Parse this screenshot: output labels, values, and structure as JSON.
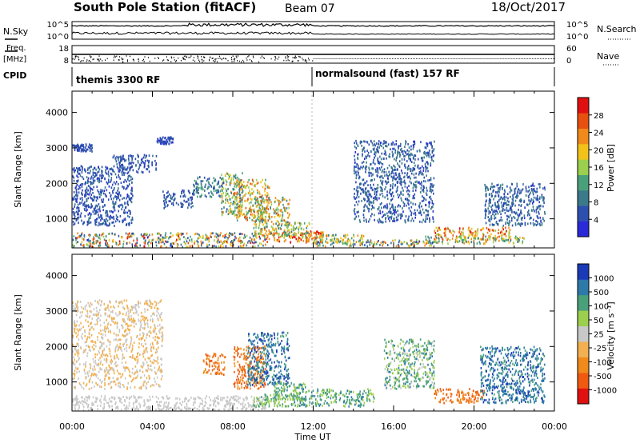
{
  "header": {
    "title": "South Pole Station (fitACF)",
    "beam": "Beam 07",
    "date": "18/Oct/2017"
  },
  "params": {
    "nsky_label": "N.Sky",
    "nsearch_label": "N.Search",
    "freq_label": "Freq.",
    "freq_unit": "[MHz]",
    "nave_label": "Nave",
    "cpid_label": "CPID",
    "nsky_ticks": [
      "10^5",
      "10^0"
    ],
    "nsearch_ticks": [
      "10^5",
      "10^0"
    ],
    "freq_ticks": [
      "18",
      "8"
    ],
    "nave_ticks": [
      "60",
      "0"
    ]
  },
  "cpid": {
    "modes": [
      {
        "label": "themis 3300 RF",
        "start_hour": 0
      },
      {
        "label": "normalsound (fast) 157 RF",
        "start_hour": 12
      }
    ]
  },
  "colors": {
    "power_scale": [
      "#2a2ad8",
      "#2d4fb0",
      "#3a7a8a",
      "#4aa07a",
      "#9ccf4e",
      "#f2c21a",
      "#f08a1a",
      "#e85010",
      "#e01010"
    ],
    "velocity_scale": [
      "#e01010",
      "#f05a10",
      "#f08a1a",
      "#f2b050",
      "#c8c8c8",
      "#9ccf4e",
      "#4aa07a",
      "#2d7aa8",
      "#1a3ab8"
    ]
  },
  "chart_data": [
    {
      "type": "heatmap",
      "name": "power",
      "ylabel": "Slant Range [km]",
      "xlabel": "",
      "ylim": [
        180,
        4600
      ],
      "yticks": [
        "1000",
        "2000",
        "3000",
        "4000"
      ],
      "xlim": [
        0,
        24
      ],
      "colorbar": {
        "label": "Power [dB]",
        "range": [
          0,
          32
        ],
        "ticks": [
          "4",
          "8",
          "12",
          "16",
          "20",
          "24",
          "28"
        ]
      },
      "echo_regions": [
        {
          "t0": 0.0,
          "t1": 9.6,
          "r0": 200,
          "r1": 600,
          "v0": 3,
          "v1": 30
        },
        {
          "t0": 9.5,
          "t1": 11.7,
          "r0": 330,
          "r1": 600,
          "v0": 18,
          "v1": 30
        },
        {
          "t0": 11.3,
          "t1": 12.5,
          "r0": 300,
          "r1": 650,
          "v0": 20,
          "v1": 30
        },
        {
          "t0": 12.0,
          "t1": 14.5,
          "r0": 300,
          "r1": 550,
          "v0": 10,
          "v1": 25
        },
        {
          "t0": 8.0,
          "t1": 9.8,
          "r0": 900,
          "r1": 2100,
          "v0": 10,
          "v1": 28
        },
        {
          "t0": 9.0,
          "t1": 10.8,
          "r0": 500,
          "r1": 1600,
          "v0": 8,
          "v1": 26
        },
        {
          "t0": 7.4,
          "t1": 8.5,
          "r0": 1100,
          "r1": 2300,
          "v0": 6,
          "v1": 24
        },
        {
          "t0": 10.5,
          "t1": 11.8,
          "r0": 450,
          "r1": 900,
          "v0": 8,
          "v1": 20
        },
        {
          "t0": 6.0,
          "t1": 7.5,
          "r0": 1600,
          "r1": 2200,
          "v0": 4,
          "v1": 14
        },
        {
          "t0": 4.5,
          "t1": 6.0,
          "r0": 1300,
          "r1": 1800,
          "v0": 3,
          "v1": 8
        },
        {
          "t0": 0.0,
          "t1": 3.0,
          "r0": 800,
          "r1": 2500,
          "v0": 3,
          "v1": 8
        },
        {
          "t0": 2.0,
          "t1": 4.2,
          "r0": 2300,
          "r1": 2800,
          "v0": 3,
          "v1": 8
        },
        {
          "t0": 0.0,
          "t1": 1.0,
          "r0": 2900,
          "r1": 3100,
          "v0": 3,
          "v1": 7
        },
        {
          "t0": 4.2,
          "t1": 5.0,
          "r0": 3100,
          "r1": 3300,
          "v0": 3,
          "v1": 7
        },
        {
          "t0": 18.0,
          "t1": 21.8,
          "r0": 400,
          "r1": 750,
          "v0": 14,
          "v1": 30
        },
        {
          "t0": 17.5,
          "t1": 22.5,
          "r0": 300,
          "r1": 500,
          "v0": 8,
          "v1": 24
        },
        {
          "t0": 20.5,
          "t1": 23.5,
          "r0": 800,
          "r1": 2000,
          "v0": 3,
          "v1": 10
        },
        {
          "t0": 14.0,
          "t1": 18.0,
          "r0": 900,
          "r1": 3200,
          "v0": 3,
          "v1": 10
        },
        {
          "t0": 12.0,
          "t1": 18.0,
          "r0": 220,
          "r1": 400,
          "v0": 4,
          "v1": 26
        }
      ]
    },
    {
      "type": "heatmap",
      "name": "velocity",
      "ylabel": "Slant Range [km]",
      "xlabel": "Time UT",
      "ylim": [
        180,
        4600
      ],
      "yticks": [
        "1000",
        "2000",
        "3000",
        "4000"
      ],
      "xlim": [
        0,
        24
      ],
      "xticks": [
        "00:00",
        "04:00",
        "08:00",
        "12:00",
        "16:00",
        "20:00",
        "00:00"
      ],
      "colorbar": {
        "label": "Velocity [m s⁻¹]",
        "ticks": [
          "1000",
          "500",
          "100",
          "50",
          "25",
          "-25",
          "-100",
          "-500",
          "-1000"
        ]
      },
      "echo_regions": [
        {
          "t0": 0.0,
          "t1": 9.6,
          "r0": 200,
          "r1": 600,
          "v0": 4,
          "v1": 4
        },
        {
          "t0": 9.0,
          "t1": 11.5,
          "r0": 300,
          "r1": 650,
          "v0": 5,
          "v1": 6
        },
        {
          "t0": 11.0,
          "t1": 15.0,
          "r0": 300,
          "r1": 800,
          "v0": 5,
          "v1": 7
        },
        {
          "t0": 8.0,
          "t1": 9.6,
          "r0": 800,
          "r1": 2000,
          "v0": 1,
          "v1": 2
        },
        {
          "t0": 6.5,
          "t1": 7.6,
          "r0": 1200,
          "r1": 1800,
          "v0": 1,
          "v1": 2
        },
        {
          "t0": 8.7,
          "t1": 10.8,
          "r0": 900,
          "r1": 2400,
          "v0": 6,
          "v1": 8
        },
        {
          "t0": 10.0,
          "t1": 11.6,
          "r0": 500,
          "r1": 1000,
          "v0": 5,
          "v1": 7
        },
        {
          "t0": 0.0,
          "t1": 4.5,
          "r0": 800,
          "r1": 3300,
          "v0": 3,
          "v1": 4
        },
        {
          "t0": 18.0,
          "t1": 20.5,
          "r0": 400,
          "r1": 800,
          "v0": 1,
          "v1": 2
        },
        {
          "t0": 20.3,
          "t1": 23.5,
          "r0": 400,
          "r1": 2000,
          "v0": 6,
          "v1": 8
        },
        {
          "t0": 15.5,
          "t1": 18.0,
          "r0": 800,
          "r1": 2200,
          "v0": 4,
          "v1": 7
        }
      ]
    }
  ],
  "xaxis": {
    "label": "Time UT",
    "ticks": [
      "00:00",
      "04:00",
      "08:00",
      "12:00",
      "16:00",
      "20:00",
      "00:00"
    ]
  }
}
